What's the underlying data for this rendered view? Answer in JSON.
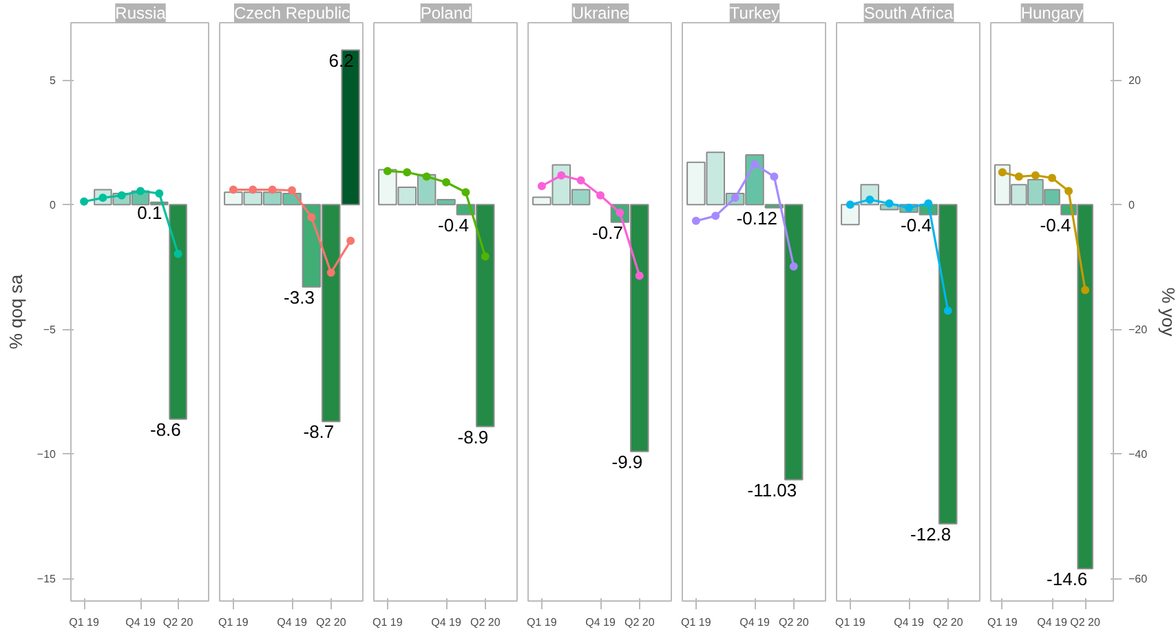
{
  "chart_data": [
    {
      "type": "bar",
      "title": "Russia",
      "ylabel": "% qoq sa",
      "tick_labels": [
        "x",
        "y"
      ],
      "categories": [
        "Q1 19",
        null,
        null,
        "Q4 19",
        null,
        "Q2 20",
        null
      ],
      "ylim": [
        -15.9,
        7.3
      ],
      "yticks": [
        -15,
        -10,
        -5,
        0,
        5
      ],
      "y2lim": [
        -63.6,
        29.2
      ],
      "marker": "circle",
      "series": [
        {
          "values": [
            null,
            0.6,
            0.45,
            0.55,
            0.1,
            -8.6,
            null
          ],
          "colors": [
            "#edf8f5",
            "#c8e9e0",
            "#99d5c5",
            "#66c2a4",
            "#41ae76",
            "#238b45",
            "#00592b"
          ],
          "value_labels": [
            null,
            null,
            null,
            null,
            "0.1",
            "-8.6",
            null
          ]
        },
        {
          "type": "line",
          "axis": "y2",
          "color": "#00bf9c",
          "values": [
            0.5,
            1.1,
            1.5,
            2.2,
            1.8,
            -7.9,
            null
          ]
        }
      ]
    },
    {
      "type": "bar",
      "title": "Czech Republic",
      "tick_labels": [
        "x"
      ],
      "categories": [
        "Q1 19",
        null,
        null,
        "Q4 19",
        null,
        "Q2 20",
        null
      ],
      "ylim": [
        -15.9,
        7.3
      ],
      "y2lim": [
        -63.6,
        29.2
      ],
      "marker": "circle",
      "series": [
        {
          "values": [
            0.5,
            0.5,
            0.5,
            0.45,
            -3.3,
            -8.7,
            6.2
          ],
          "colors": [
            "#edf8f5",
            "#c8e9e0",
            "#99d5c5",
            "#66c2a4",
            "#41ae76",
            "#238b45",
            "#00592b"
          ],
          "value_labels": [
            null,
            null,
            null,
            null,
            "-3.3",
            "-8.7",
            "6.2"
          ]
        },
        {
          "type": "line",
          "axis": "y2",
          "color": "#f8766d",
          "values": [
            2.4,
            2.4,
            2.4,
            2.3,
            -2.0,
            -10.9,
            -5.8
          ]
        }
      ]
    },
    {
      "type": "bar",
      "title": "Poland",
      "tick_labels": [
        "x"
      ],
      "categories": [
        "Q1 19",
        null,
        null,
        "Q4 19",
        null,
        "Q2 20",
        null
      ],
      "ylim": [
        -15.9,
        7.3
      ],
      "y2lim": [
        -63.6,
        29.2
      ],
      "marker": "circle",
      "series": [
        {
          "values": [
            1.4,
            0.7,
            1.2,
            0.2,
            -0.4,
            -8.9,
            null
          ],
          "colors": [
            "#edf8f5",
            "#c8e9e0",
            "#99d5c5",
            "#66c2a4",
            "#41ae76",
            "#238b45",
            "#00592b"
          ],
          "value_labels": [
            null,
            null,
            null,
            null,
            "-0.4",
            "-8.9",
            null
          ]
        },
        {
          "type": "line",
          "axis": "y2",
          "color": "#53b400",
          "values": [
            5.4,
            5.2,
            4.5,
            3.6,
            2.0,
            -8.3,
            null
          ]
        }
      ]
    },
    {
      "type": "bar",
      "title": "Ukraine",
      "tick_labels": [
        "x"
      ],
      "categories": [
        "Q1 19",
        null,
        null,
        "Q4 19",
        null,
        "Q2 20",
        null
      ],
      "ylim": [
        -15.9,
        7.3
      ],
      "y2lim": [
        -63.6,
        29.2
      ],
      "marker": "circle",
      "series": [
        {
          "values": [
            0.3,
            1.6,
            0.6,
            null,
            -0.7,
            -9.9,
            null
          ],
          "colors": [
            "#edf8f5",
            "#c8e9e0",
            "#99d5c5",
            "#66c2a4",
            "#41ae76",
            "#238b45",
            "#00592b"
          ],
          "value_labels": [
            null,
            null,
            null,
            null,
            "-0.7",
            "-9.9",
            null
          ]
        },
        {
          "type": "line",
          "axis": "y2",
          "color": "#fb61d7",
          "values": [
            3.0,
            4.7,
            3.9,
            1.5,
            -1.3,
            -11.4,
            null
          ]
        }
      ]
    },
    {
      "type": "bar",
      "title": "Turkey",
      "tick_labels": [
        "x"
      ],
      "categories": [
        "Q1 19",
        null,
        null,
        "Q4 19",
        null,
        "Q2 20",
        null
      ],
      "ylim": [
        -15.9,
        7.3
      ],
      "y2lim": [
        -63.6,
        29.2
      ],
      "marker": "circle",
      "series": [
        {
          "values": [
            1.7,
            2.1,
            0.45,
            2.0,
            -0.12,
            -11.03,
            null
          ],
          "colors": [
            "#edf8f5",
            "#c8e9e0",
            "#99d5c5",
            "#66c2a4",
            "#41ae76",
            "#238b45",
            "#00592b"
          ],
          "value_labels": [
            null,
            null,
            null,
            null,
            "-0.12",
            "-11.03",
            null
          ]
        },
        {
          "type": "line",
          "axis": "y2",
          "color": "#a58aff",
          "values": [
            -2.6,
            -1.8,
            1.1,
            6.5,
            4.5,
            -9.9,
            null
          ]
        }
      ]
    },
    {
      "type": "bar",
      "title": "South Africa",
      "tick_labels": [
        "x"
      ],
      "categories": [
        "Q1 19",
        null,
        null,
        "Q4 19",
        null,
        "Q2 20",
        null
      ],
      "ylim": [
        -15.9,
        7.3
      ],
      "y2lim": [
        -63.6,
        29.2
      ],
      "marker": "circle",
      "series": [
        {
          "values": [
            -0.8,
            0.8,
            -0.2,
            -0.3,
            -0.4,
            -12.8,
            null
          ],
          "colors": [
            "#edf8f5",
            "#c8e9e0",
            "#99d5c5",
            "#66c2a4",
            "#41ae76",
            "#238b45",
            "#00592b"
          ],
          "value_labels": [
            null,
            null,
            null,
            null,
            "-0.4",
            "-12.8",
            null
          ]
        },
        {
          "type": "line",
          "axis": "y2",
          "color": "#00b6eb",
          "values": [
            0.0,
            0.8,
            0.2,
            -0.5,
            0.2,
            -17.0,
            null
          ]
        }
      ]
    },
    {
      "type": "bar",
      "title": "Hungary",
      "y2label": "% yoy",
      "tick_labels": [
        "x",
        "y2"
      ],
      "categories": [
        "Q1 19",
        null,
        null,
        "Q4 19",
        null,
        "Q2 20",
        null
      ],
      "ylim": [
        -15.9,
        7.3
      ],
      "y2lim": [
        -63.6,
        29.2
      ],
      "y2ticks": [
        -60,
        -40,
        -20,
        0,
        20
      ],
      "marker": "circle",
      "series": [
        {
          "values": [
            1.6,
            0.8,
            1.0,
            0.6,
            -0.4,
            -14.6,
            null
          ],
          "colors": [
            "#edf8f5",
            "#c8e9e0",
            "#99d5c5",
            "#66c2a4",
            "#41ae76",
            "#238b45",
            "#00592b"
          ],
          "value_labels": [
            null,
            null,
            null,
            null,
            "-0.4",
            "-14.6",
            null
          ]
        },
        {
          "type": "line",
          "axis": "y2",
          "color": "#c49a00",
          "values": [
            5.2,
            4.5,
            4.7,
            4.3,
            2.2,
            -13.7,
            null
          ]
        }
      ]
    }
  ]
}
